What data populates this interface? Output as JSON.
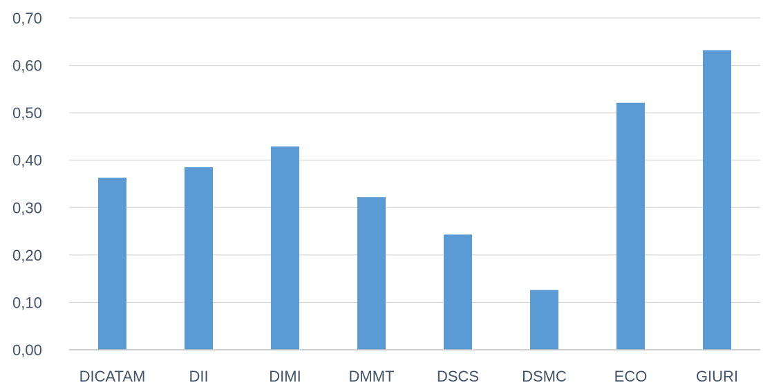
{
  "chart_data": {
    "type": "bar",
    "title": "",
    "xlabel": "",
    "ylabel": "",
    "categories": [
      "DICATAM",
      "DII",
      "DIMI",
      "DMMT",
      "DSCS",
      "DSMC",
      "ECO",
      "GIURI"
    ],
    "values": [
      0.363,
      0.385,
      0.429,
      0.322,
      0.243,
      0.126,
      0.521,
      0.632
    ],
    "ylim": [
      0,
      0.7
    ],
    "yticks": [
      0.0,
      0.1,
      0.2,
      0.3,
      0.4,
      0.5,
      0.6,
      0.7
    ],
    "ytick_labels": [
      "0,00",
      "0,10",
      "0,20",
      "0,30",
      "0,40",
      "0,50",
      "0,60",
      "0,70"
    ],
    "grid": true,
    "legend": "none",
    "colors": {
      "bar": "#5b9bd5",
      "grid": "#d9d9d9",
      "axis": "#bfbfbf",
      "tick_text": "#44546a"
    }
  }
}
